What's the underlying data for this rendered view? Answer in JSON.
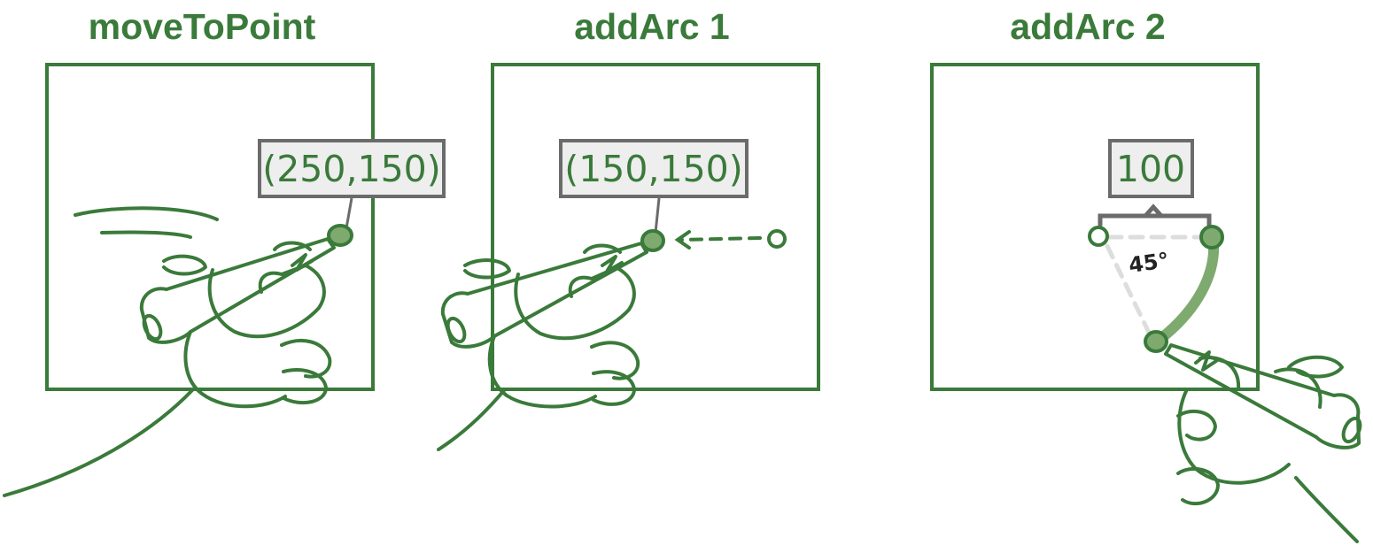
{
  "colors": {
    "green": "#3a7a3a",
    "green_fill": "#7faa6f",
    "label_border": "#6b6b6b",
    "label_bg": "#eeeeee",
    "dashed_gray": "#dddddd",
    "black": "#222222"
  },
  "panels": [
    {
      "title": "moveToPoint",
      "value_label": "(250,150)",
      "icon": "hand-drawing-icon"
    },
    {
      "title": "addArc 1",
      "value_label": "(150,150)",
      "icon": "hand-drawing-icon"
    },
    {
      "title": "addArc 2",
      "value_label": "100",
      "angle_label": "45°",
      "icon": "hand-drawing-icon"
    }
  ]
}
